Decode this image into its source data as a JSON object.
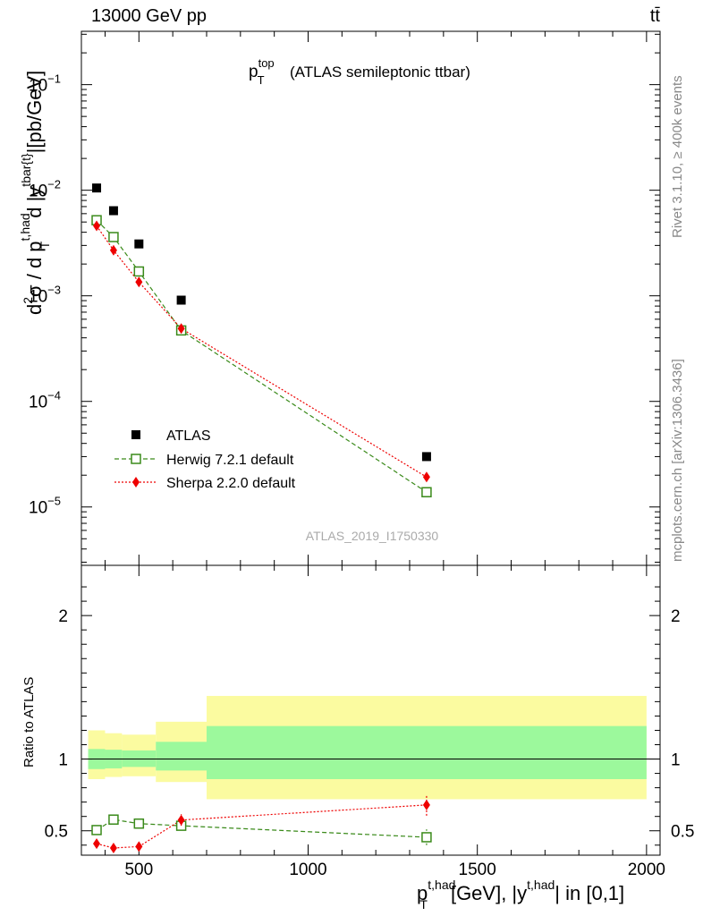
{
  "header": {
    "left": "13000 GeV pp",
    "right": "tt̄"
  },
  "side_labels": {
    "rivet": "Rivet 3.1.10, ≥ 400k events",
    "mcplots": "mcplots.cern.ch [arXiv:1306.3436]"
  },
  "chart_data": {
    "type": "scatter",
    "title": {
      "main": "p",
      "sup": "top",
      "sub": "T",
      "rest": "(ATLAS semileptonic ttbar)"
    },
    "watermark": "ATLAS_2019_I1750330",
    "xlabel": {
      "p": "p",
      "sup": "t,had",
      "sub": "T",
      "rest1": "[GeV], |y",
      "sup2": "t,had",
      "rest2": "| in [0,1]"
    },
    "ylabel": {
      "d2": "d",
      "two": "2",
      "sigma": "σ / d p",
      "sup1": "t,had",
      "sub1": "T",
      "rest1": "d |y",
      "sup2": "tbar{t}",
      "rest2": "|[pb/GeV]"
    },
    "ratio_ylabel": "Ratio to ATLAS",
    "xlim": [
      330,
      2040
    ],
    "ylim": [
      2.8e-06,
      0.32
    ],
    "y_log": true,
    "ratio_ylim": [
      0.33,
      2.35
    ],
    "x_ticks": [
      500,
      1000,
      1500,
      2000
    ],
    "y_ticks": [
      {
        "value": 0.1,
        "base": "10",
        "exp": "−1"
      },
      {
        "value": 0.01,
        "base": "10",
        "exp": "−2"
      },
      {
        "value": 0.001,
        "base": "10",
        "exp": "−3"
      },
      {
        "value": 0.0001,
        "base": "10",
        "exp": "−4"
      },
      {
        "value": 1e-05,
        "base": "10",
        "exp": "−5"
      }
    ],
    "ratio_ticks": [
      0.5,
      1,
      2
    ],
    "bins": [
      [
        350,
        400
      ],
      [
        400,
        450
      ],
      [
        450,
        550
      ],
      [
        550,
        700
      ],
      [
        700,
        2000
      ]
    ],
    "legend": {
      "position": "lower-left"
    },
    "series": [
      {
        "name": "ATLAS",
        "marker": "square-filled",
        "color": "#000000",
        "x": [
          375,
          425,
          500,
          625,
          1350
        ],
        "y": [
          0.0105,
          0.0064,
          0.0031,
          0.00091,
          3e-05
        ]
      },
      {
        "name": "Herwig 7.2.1 default",
        "marker": "square-open",
        "color": "#3a8a1a",
        "dash": "5,3",
        "x": [
          375,
          425,
          500,
          625,
          1350
        ],
        "y": [
          0.0052,
          0.0036,
          0.0017,
          0.00047,
          1.38e-05
        ],
        "ratio": [
          0.505,
          0.578,
          0.55,
          0.535,
          0.455
        ],
        "ratio_err": [
          0.012,
          0.012,
          0.012,
          0.025,
          0.055
        ]
      },
      {
        "name": "Sherpa 2.2.0 default",
        "marker": "diamond-filled",
        "color": "#ee0000",
        "dash": "2,2",
        "x": [
          375,
          425,
          500,
          625,
          1350
        ],
        "y": [
          0.0046,
          0.0027,
          0.00135,
          0.00049,
          1.92e-05
        ],
        "ratio": [
          0.41,
          0.38,
          0.39,
          0.575,
          0.68
        ],
        "ratio_err": [
          0.02,
          0.025,
          0.025,
          0.04,
          0.075
        ]
      }
    ],
    "bands": {
      "inner_color": "#9cf99c",
      "outer_color": "#fbfba0",
      "inner": [
        [
          0.93,
          1.07
        ],
        [
          0.935,
          1.065
        ],
        [
          0.945,
          1.06
        ],
        [
          0.92,
          1.12
        ],
        [
          0.86,
          1.23
        ]
      ],
      "outer": [
        [
          0.86,
          1.2
        ],
        [
          0.875,
          1.18
        ],
        [
          0.88,
          1.17
        ],
        [
          0.84,
          1.26
        ],
        [
          0.72,
          1.44
        ]
      ]
    }
  }
}
